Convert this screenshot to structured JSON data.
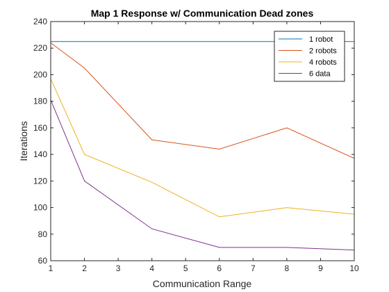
{
  "chart_data": {
    "type": "line",
    "title": "Map 1 Response w/ Communication Dead zones",
    "xlabel": "Communication Range",
    "ylabel": "Iterations",
    "xlim": [
      1,
      10
    ],
    "ylim": [
      60,
      240
    ],
    "xticks": [
      1,
      2,
      3,
      4,
      5,
      6,
      7,
      8,
      9,
      10
    ],
    "yticks": [
      60,
      80,
      100,
      120,
      140,
      160,
      180,
      200,
      220,
      240
    ],
    "grid": false,
    "legend": "top-right",
    "x": [
      1,
      2,
      4,
      6,
      8,
      10
    ],
    "series": [
      {
        "name": "1 robot",
        "color": "#0072BD",
        "values": [
          225,
          225,
          225,
          225,
          225,
          225
        ]
      },
      {
        "name": "2 robots",
        "color": "#D95319",
        "values": [
          224,
          205,
          151,
          144,
          160,
          137
        ]
      },
      {
        "name": "4 robots",
        "color": "#EDB120",
        "values": [
          197,
          140,
          119,
          93,
          100,
          95
        ]
      },
      {
        "name": "6 data",
        "color": "#7E2F8E",
        "values": [
          181,
          120,
          84,
          70,
          70,
          68
        ]
      }
    ]
  }
}
